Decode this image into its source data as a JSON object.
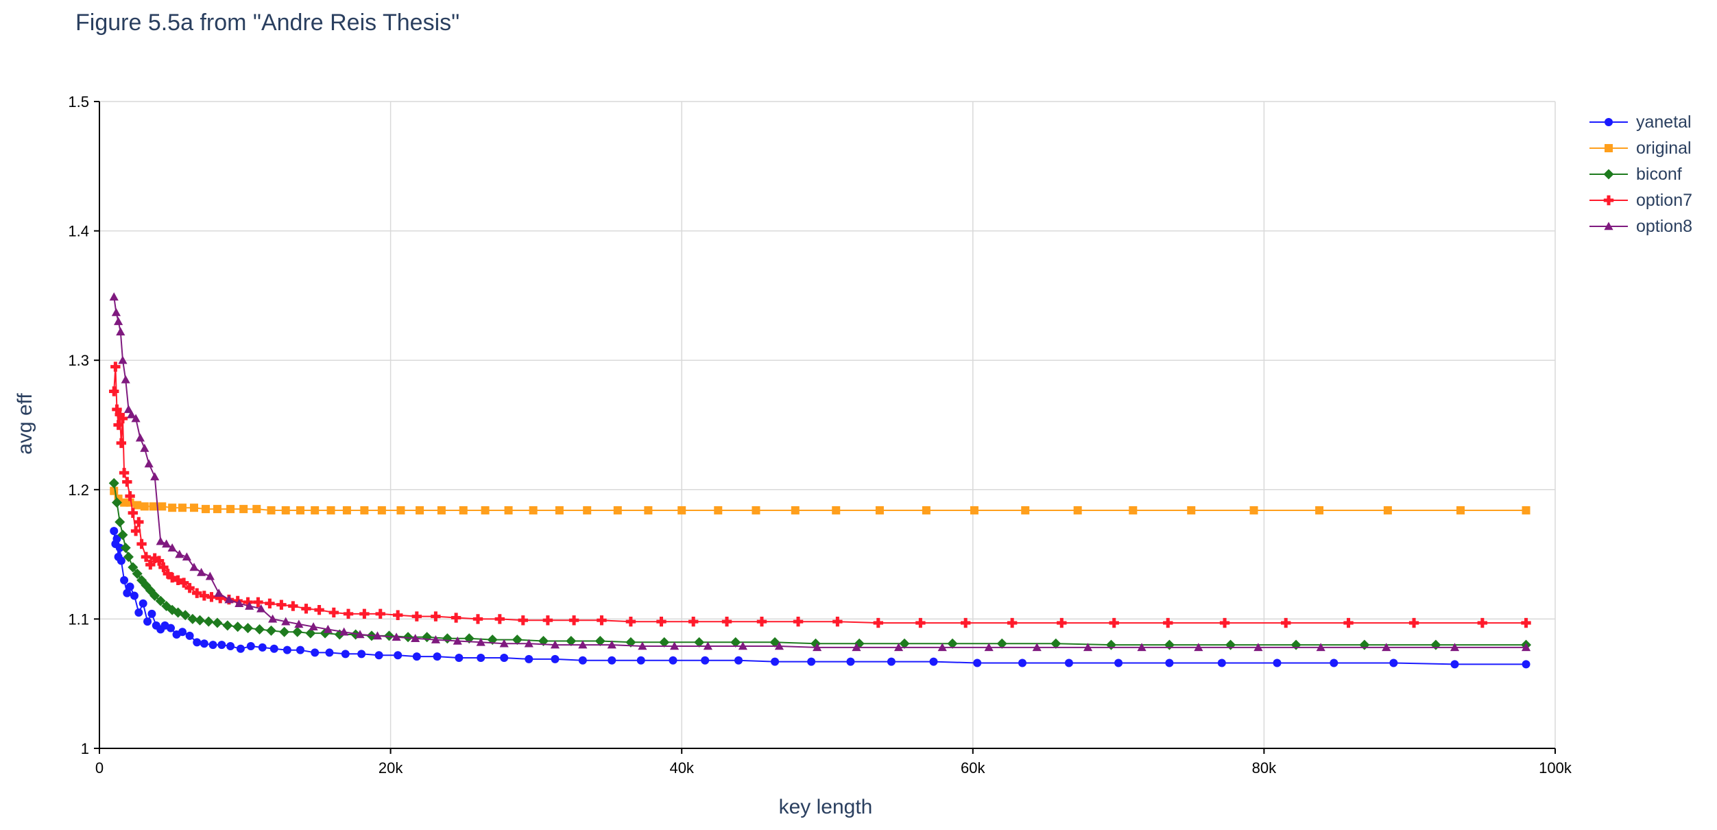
{
  "title": "Figure 5.5a from \"Andre Reis Thesis\"",
  "chart_data": {
    "type": "line",
    "title": "Figure 5.5a from \"Andre Reis Thesis\"",
    "xlabel": "key length",
    "ylabel": "avg eff",
    "xlim": [
      0,
      100000
    ],
    "ylim": [
      1,
      1.5
    ],
    "x_ticks": [
      0,
      20000,
      40000,
      60000,
      80000,
      100000
    ],
    "x_tick_labels": [
      "0",
      "20k",
      "40k",
      "60k",
      "80k",
      "100k"
    ],
    "y_ticks": [
      1,
      1.1,
      1.2,
      1.3,
      1.4,
      1.5
    ],
    "y_tick_labels": [
      "1",
      "1.1",
      "1.2",
      "1.3",
      "1.4",
      "1.5"
    ],
    "grid": true,
    "legend_position": "top-right",
    "series": [
      {
        "name": "yanetal",
        "color": "#1a1aff",
        "marker": "circle",
        "x": [
          1000,
          1100,
          1200,
          1300,
          1400,
          1500,
          1700,
          1900,
          2100,
          2400,
          2700,
          3000,
          3300,
          3600,
          3900,
          4200,
          4500,
          4900,
          5300,
          5700,
          6200,
          6700,
          7200,
          7800,
          8400,
          9000,
          9700,
          10400,
          11200,
          12000,
          12900,
          13800,
          14800,
          15800,
          16900,
          18000,
          19200,
          20500,
          21800,
          23200,
          24700,
          26200,
          27800,
          29500,
          31300,
          33200,
          35200,
          37200,
          39400,
          41600,
          43900,
          46400,
          48900,
          51600,
          54400,
          57300,
          60300,
          63400,
          66600,
          70000,
          73500,
          77100,
          80900,
          84800,
          88900,
          93100,
          98000
        ],
        "y": [
          1.168,
          1.158,
          1.162,
          1.148,
          1.155,
          1.145,
          1.13,
          1.12,
          1.125,
          1.118,
          1.105,
          1.112,
          1.098,
          1.104,
          1.095,
          1.092,
          1.095,
          1.093,
          1.088,
          1.09,
          1.087,
          1.082,
          1.081,
          1.08,
          1.08,
          1.079,
          1.077,
          1.079,
          1.078,
          1.077,
          1.076,
          1.076,
          1.074,
          1.074,
          1.073,
          1.073,
          1.072,
          1.072,
          1.071,
          1.071,
          1.07,
          1.07,
          1.07,
          1.069,
          1.069,
          1.068,
          1.068,
          1.068,
          1.068,
          1.068,
          1.068,
          1.067,
          1.067,
          1.067,
          1.067,
          1.067,
          1.066,
          1.066,
          1.066,
          1.066,
          1.066,
          1.066,
          1.066,
          1.066,
          1.066,
          1.065,
          1.065
        ]
      },
      {
        "name": "original",
        "color": "#ff9f1c",
        "marker": "square",
        "x": [
          1000,
          1300,
          1700,
          2100,
          2600,
          3100,
          3700,
          4300,
          5000,
          5700,
          6500,
          7300,
          8100,
          9000,
          9900,
          10800,
          11800,
          12800,
          13800,
          14800,
          15900,
          17000,
          18200,
          19400,
          20700,
          22000,
          23500,
          25000,
          26500,
          28100,
          29800,
          31600,
          33500,
          35600,
          37700,
          40000,
          42500,
          45100,
          47800,
          50600,
          53600,
          56800,
          60100,
          63600,
          67200,
          71000,
          75000,
          79300,
          83800,
          88500,
          93500,
          98000
        ],
        "y": [
          1.199,
          1.193,
          1.19,
          1.19,
          1.188,
          1.187,
          1.187,
          1.187,
          1.186,
          1.186,
          1.186,
          1.185,
          1.185,
          1.185,
          1.185,
          1.185,
          1.184,
          1.184,
          1.184,
          1.184,
          1.184,
          1.184,
          1.184,
          1.184,
          1.184,
          1.184,
          1.184,
          1.184,
          1.184,
          1.184,
          1.184,
          1.184,
          1.184,
          1.184,
          1.184,
          1.184,
          1.184,
          1.184,
          1.184,
          1.184,
          1.184,
          1.184,
          1.184,
          1.184,
          1.184,
          1.184,
          1.184,
          1.184,
          1.184,
          1.184,
          1.184,
          1.184
        ]
      },
      {
        "name": "biconf",
        "color": "#1e7b1e",
        "marker": "diamond",
        "x": [
          1000,
          1200,
          1400,
          1600,
          1800,
          2000,
          2300,
          2600,
          2900,
          3200,
          3500,
          3800,
          4200,
          4600,
          5000,
          5400,
          5900,
          6400,
          6900,
          7500,
          8100,
          8800,
          9500,
          10200,
          11000,
          11800,
          12700,
          13600,
          14500,
          15500,
          16500,
          17600,
          18700,
          19900,
          21200,
          22500,
          23900,
          25400,
          27000,
          28700,
          30500,
          32400,
          34400,
          36500,
          38800,
          41200,
          43700,
          46400,
          49200,
          52200,
          55300,
          58600,
          62000,
          65700,
          69500,
          73500,
          77700,
          82200,
          86900,
          91800,
          98000
        ],
        "y": [
          1.205,
          1.19,
          1.175,
          1.165,
          1.155,
          1.148,
          1.14,
          1.135,
          1.13,
          1.126,
          1.122,
          1.118,
          1.114,
          1.11,
          1.107,
          1.105,
          1.103,
          1.1,
          1.099,
          1.098,
          1.097,
          1.095,
          1.094,
          1.093,
          1.092,
          1.091,
          1.09,
          1.09,
          1.089,
          1.089,
          1.088,
          1.088,
          1.087,
          1.087,
          1.086,
          1.086,
          1.085,
          1.085,
          1.084,
          1.084,
          1.083,
          1.083,
          1.083,
          1.082,
          1.082,
          1.082,
          1.082,
          1.082,
          1.081,
          1.081,
          1.081,
          1.081,
          1.081,
          1.081,
          1.08,
          1.08,
          1.08,
          1.08,
          1.08,
          1.08,
          1.08
        ]
      },
      {
        "name": "option7",
        "color": "#ff1a2b",
        "marker": "cross",
        "x": [
          1000,
          1100,
          1200,
          1300,
          1400,
          1500,
          1600,
          1700,
          1900,
          2100,
          2300,
          2500,
          2700,
          2900,
          3200,
          3500,
          3800,
          4100,
          4400,
          4700,
          5000,
          5400,
          5800,
          6200,
          6700,
          7200,
          7700,
          8300,
          8900,
          9500,
          10200,
          10900,
          11700,
          12500,
          13300,
          14200,
          15100,
          16100,
          17100,
          18200,
          19300,
          20500,
          21800,
          23100,
          24500,
          26000,
          27500,
          29100,
          30800,
          32600,
          34500,
          36500,
          38600,
          40800,
          43100,
          45500,
          48000,
          50700,
          53500,
          56400,
          59500,
          62700,
          66100,
          69700,
          73400,
          77300,
          81500,
          85800,
          90300,
          95000,
          98000
        ],
        "y": [
          1.276,
          1.295,
          1.262,
          1.25,
          1.258,
          1.236,
          1.255,
          1.213,
          1.206,
          1.195,
          1.182,
          1.168,
          1.175,
          1.158,
          1.148,
          1.142,
          1.147,
          1.145,
          1.14,
          1.135,
          1.132,
          1.13,
          1.128,
          1.124,
          1.12,
          1.118,
          1.117,
          1.116,
          1.115,
          1.114,
          1.113,
          1.113,
          1.112,
          1.111,
          1.11,
          1.108,
          1.107,
          1.105,
          1.104,
          1.104,
          1.104,
          1.103,
          1.102,
          1.102,
          1.101,
          1.1,
          1.1,
          1.099,
          1.099,
          1.099,
          1.099,
          1.098,
          1.098,
          1.098,
          1.098,
          1.098,
          1.098,
          1.098,
          1.097,
          1.097,
          1.097,
          1.097,
          1.097,
          1.097,
          1.097,
          1.097,
          1.097,
          1.097,
          1.097,
          1.097,
          1.097
        ]
      },
      {
        "name": "option8",
        "color": "#7f1a7f",
        "marker": "triangle",
        "x": [
          1000,
          1150,
          1300,
          1450,
          1600,
          1800,
          2000,
          2200,
          2500,
          2800,
          3100,
          3400,
          3800,
          4200,
          4600,
          5000,
          5500,
          6000,
          6500,
          7000,
          7600,
          8200,
          8900,
          9600,
          10300,
          11100,
          11900,
          12800,
          13700,
          14700,
          15700,
          16800,
          17900,
          19100,
          20400,
          21700,
          23100,
          24600,
          26200,
          27800,
          29500,
          31300,
          33200,
          35200,
          37300,
          39500,
          41800,
          44200,
          46700,
          49300,
          52000,
          54900,
          57900,
          61100,
          64400,
          67900,
          71600,
          75500,
          79600,
          83900,
          88400,
          93100,
          98000
        ],
        "y": [
          1.349,
          1.337,
          1.33,
          1.322,
          1.3,
          1.285,
          1.262,
          1.258,
          1.255,
          1.24,
          1.232,
          1.22,
          1.21,
          1.16,
          1.158,
          1.155,
          1.15,
          1.148,
          1.14,
          1.136,
          1.133,
          1.12,
          1.115,
          1.112,
          1.11,
          1.108,
          1.1,
          1.098,
          1.096,
          1.094,
          1.092,
          1.09,
          1.088,
          1.087,
          1.086,
          1.085,
          1.084,
          1.083,
          1.082,
          1.081,
          1.081,
          1.08,
          1.08,
          1.08,
          1.079,
          1.079,
          1.079,
          1.079,
          1.079,
          1.078,
          1.078,
          1.078,
          1.078,
          1.078,
          1.078,
          1.078,
          1.078,
          1.078,
          1.078,
          1.078,
          1.078,
          1.078,
          1.078
        ]
      }
    ]
  }
}
